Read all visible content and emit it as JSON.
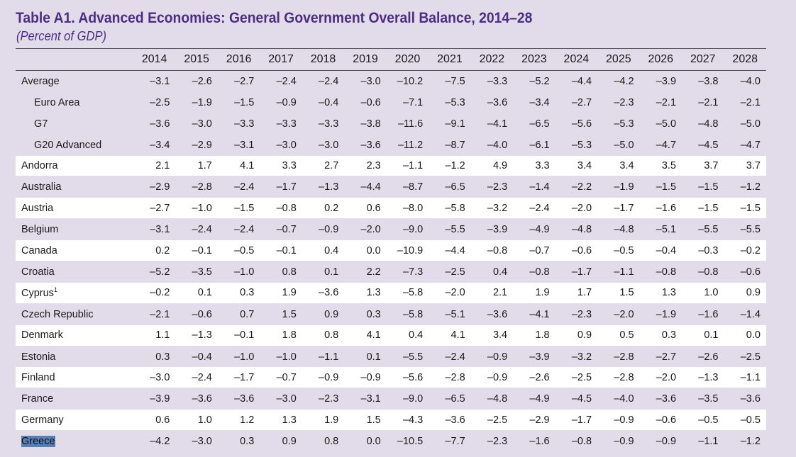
{
  "title": "Table A1. Advanced Economies: General Government Overall Balance, 2014–28",
  "subtitle": "(Percent of GDP)",
  "years": [
    "2014",
    "2015",
    "2016",
    "2017",
    "2018",
    "2019",
    "2020",
    "2021",
    "2022",
    "2023",
    "2024",
    "2025",
    "2026",
    "2027",
    "2028"
  ],
  "rows": [
    {
      "name": "Average",
      "group": "agg",
      "indent": false,
      "values": [
        "–3.1",
        "–2.6",
        "–2.7",
        "–2.4",
        "–2.4",
        "–3.0",
        "–10.2",
        "–7.5",
        "–3.3",
        "–5.2",
        "–4.4",
        "–4.2",
        "–3.9",
        "–3.8",
        "–4.0"
      ]
    },
    {
      "name": "Euro Area",
      "group": "agg",
      "indent": true,
      "values": [
        "–2.5",
        "–1.9",
        "–1.5",
        "–0.9",
        "–0.4",
        "–0.6",
        "–7.1",
        "–5.3",
        "–3.6",
        "–3.4",
        "–2.7",
        "–2.3",
        "–2.1",
        "–2.1",
        "–2.1"
      ]
    },
    {
      "name": "G7",
      "group": "agg",
      "indent": true,
      "values": [
        "–3.6",
        "–3.0",
        "–3.3",
        "–3.3",
        "–3.3",
        "–3.8",
        "–11.6",
        "–9.1",
        "–4.1",
        "–6.5",
        "–5.6",
        "–5.3",
        "–5.0",
        "–4.8",
        "–5.0"
      ]
    },
    {
      "name": "G20 Advanced",
      "group": "agg",
      "indent": true,
      "values": [
        "–3.4",
        "–2.9",
        "–3.1",
        "–3.0",
        "–3.0",
        "–3.6",
        "–11.2",
        "–8.7",
        "–4.0",
        "–6.1",
        "–5.3",
        "–5.0",
        "–4.7",
        "–4.5",
        "–4.7"
      ]
    },
    {
      "name": "Andorra",
      "group": "white",
      "indent": false,
      "values": [
        "2.1",
        "1.7",
        "4.1",
        "3.3",
        "2.7",
        "2.3",
        "–1.1",
        "–1.2",
        "4.9",
        "3.3",
        "3.4",
        "3.4",
        "3.5",
        "3.7",
        "3.7"
      ]
    },
    {
      "name": "Australia",
      "group": "lav",
      "indent": false,
      "values": [
        "–2.9",
        "–2.8",
        "–2.4",
        "–1.7",
        "–1.3",
        "–4.4",
        "–8.7",
        "–6.5",
        "–2.3",
        "–1.4",
        "–2.2",
        "–1.9",
        "–1.5",
        "–1.5",
        "–1.2"
      ]
    },
    {
      "name": "Austria",
      "group": "white",
      "indent": false,
      "values": [
        "–2.7",
        "–1.0",
        "–1.5",
        "–0.8",
        "0.2",
        "0.6",
        "–8.0",
        "–5.8",
        "–3.2",
        "–2.4",
        "–2.0",
        "–1.7",
        "–1.6",
        "–1.5",
        "–1.5"
      ]
    },
    {
      "name": "Belgium",
      "group": "lav",
      "indent": false,
      "values": [
        "–3.1",
        "–2.4",
        "–2.4",
        "–0.7",
        "–0.9",
        "–2.0",
        "–9.0",
        "–5.5",
        "–3.9",
        "–4.9",
        "–4.8",
        "–4.8",
        "–5.1",
        "–5.5",
        "–5.5"
      ]
    },
    {
      "name": "Canada",
      "group": "white",
      "indent": false,
      "values": [
        "0.2",
        "–0.1",
        "–0.5",
        "–0.1",
        "0.4",
        "0.0",
        "–10.9",
        "–4.4",
        "–0.8",
        "–0.7",
        "–0.6",
        "–0.5",
        "–0.4",
        "–0.3",
        "–0.2"
      ]
    },
    {
      "name": "Croatia",
      "group": "lav",
      "indent": false,
      "values": [
        "–5.2",
        "–3.5",
        "–1.0",
        "0.8",
        "0.1",
        "2.2",
        "–7.3",
        "–2.5",
        "0.4",
        "–0.8",
        "–1.7",
        "–1.1",
        "–0.8",
        "–0.8",
        "–0.6"
      ]
    },
    {
      "name": "Cyprus",
      "sup": "1",
      "group": "white",
      "indent": false,
      "values": [
        "–0.2",
        "0.1",
        "0.3",
        "1.9",
        "–3.6",
        "1.3",
        "–5.8",
        "–2.0",
        "2.1",
        "1.9",
        "1.7",
        "1.5",
        "1.3",
        "1.0",
        "0.9"
      ]
    },
    {
      "name": "Czech Republic",
      "group": "lav",
      "indent": false,
      "values": [
        "–2.1",
        "–0.6",
        "0.7",
        "1.5",
        "0.9",
        "0.3",
        "–5.8",
        "–5.1",
        "–3.6",
        "–4.1",
        "–2.3",
        "–2.0",
        "–1.9",
        "–1.6",
        "–1.4"
      ]
    },
    {
      "name": "Denmark",
      "group": "white",
      "indent": false,
      "values": [
        "1.1",
        "–1.3",
        "–0.1",
        "1.8",
        "0.8",
        "4.1",
        "0.4",
        "4.1",
        "3.4",
        "1.8",
        "0.9",
        "0.5",
        "0.3",
        "0.1",
        "0.0"
      ]
    },
    {
      "name": "Estonia",
      "group": "lav",
      "indent": false,
      "values": [
        "0.3",
        "–0.4",
        "–1.0",
        "–1.0",
        "–1.1",
        "0.1",
        "–5.5",
        "–2.4",
        "–0.9",
        "–3.9",
        "–3.2",
        "–2.8",
        "–2.7",
        "–2.6",
        "–2.5"
      ]
    },
    {
      "name": "Finland",
      "group": "white",
      "indent": false,
      "values": [
        "–3.0",
        "–2.4",
        "–1.7",
        "–0.7",
        "–0.9",
        "–0.9",
        "–5.6",
        "–2.8",
        "–0.9",
        "–2.6",
        "–2.5",
        "–2.8",
        "–2.0",
        "–1.3",
        "–1.1"
      ]
    },
    {
      "name": "France",
      "group": "lav",
      "indent": false,
      "values": [
        "–3.9",
        "–3.6",
        "–3.6",
        "–3.0",
        "–2.3",
        "–3.1",
        "–9.0",
        "–6.5",
        "–4.8",
        "–4.9",
        "–4.5",
        "–4.0",
        "–3.6",
        "–3.5",
        "–3.6"
      ]
    },
    {
      "name": "Germany",
      "group": "white",
      "indent": false,
      "values": [
        "0.6",
        "1.0",
        "1.2",
        "1.3",
        "1.9",
        "1.5",
        "–4.3",
        "–3.6",
        "–2.5",
        "–2.9",
        "–1.7",
        "–0.9",
        "–0.6",
        "–0.5",
        "–0.5"
      ]
    },
    {
      "name": "Greece",
      "group": "lav",
      "indent": false,
      "selected": true,
      "values": [
        "–4.2",
        "–3.0",
        "0.3",
        "0.9",
        "0.8",
        "0.0",
        "–10.5",
        "–7.7",
        "–2.3",
        "–1.6",
        "–0.8",
        "–0.9",
        "–0.9",
        "–1.1",
        "–1.2"
      ]
    }
  ]
}
